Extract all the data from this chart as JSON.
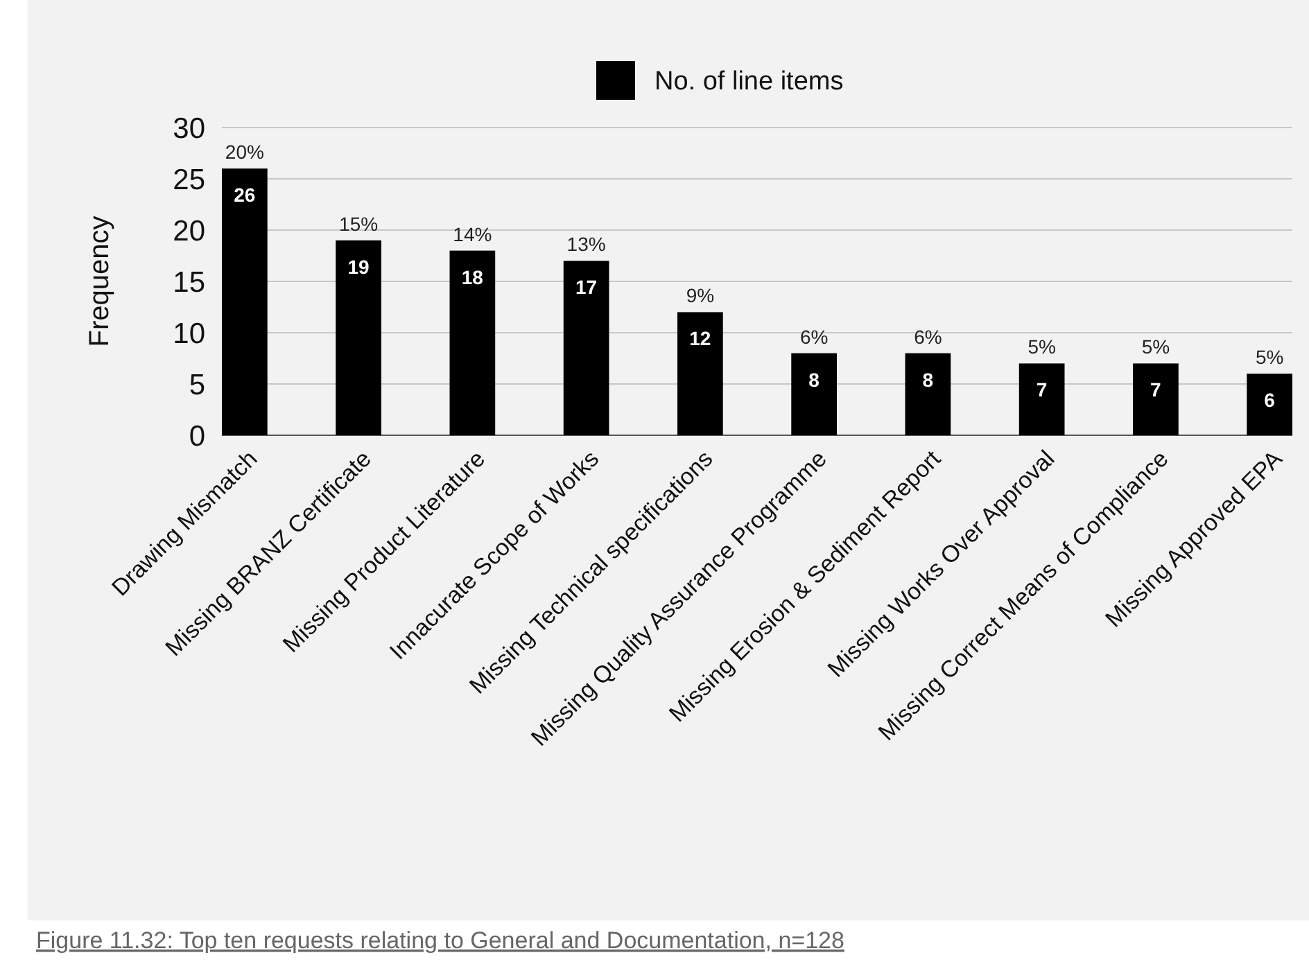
{
  "chart_data": {
    "type": "bar",
    "ylabel": "Frequency",
    "categories": [
      "Drawing Mismatch",
      "Missing BRANZ Certificate",
      "Missing Product Literature",
      "Innacurate Scope of Works",
      "Missing Technical specifications",
      "Missing Quality Assurance Programme",
      "Missing Erosion & Sediment Report",
      "Missing Works Over Approval",
      "Missing Correct Means of Compliance",
      "Missing Approved EPA"
    ],
    "series": [
      {
        "name": "No. of line items",
        "color": "#000000",
        "values": [
          26,
          19,
          18,
          17,
          12,
          8,
          8,
          7,
          7,
          6
        ]
      }
    ],
    "ylim": [
      0,
      30
    ],
    "yticks": [
      0,
      5,
      10,
      15,
      20,
      25,
      30
    ],
    "grid": "y",
    "legend": "top",
    "data_labels": true,
    "annotations": [
      {
        "text": "20%",
        "x": "Drawing Mismatch",
        "y": 26
      },
      {
        "text": "15%",
        "x": "Missing BRANZ Certificate",
        "y": 19
      },
      {
        "text": "14%",
        "x": "Missing Product Literature",
        "y": 18
      },
      {
        "text": "13%",
        "x": "Innacurate Scope of Works",
        "y": 17
      },
      {
        "text": "9%",
        "x": "Missing Technical specifications",
        "y": 12
      },
      {
        "text": "6%",
        "x": "Missing Quality Assurance Programme",
        "y": 8
      },
      {
        "text": "6%",
        "x": "Missing Erosion & Sediment Report",
        "y": 8
      },
      {
        "text": "5%",
        "x": "Missing Works Over Approval",
        "y": 7
      },
      {
        "text": "5%",
        "x": "Missing Correct Means of Compliance",
        "y": 7
      },
      {
        "text": "5%",
        "x": "Missing Approved EPA",
        "y": 6
      },
      "Figure 11.32:  Top ten requests relating to General and Documentation, n=128"
    ]
  }
}
